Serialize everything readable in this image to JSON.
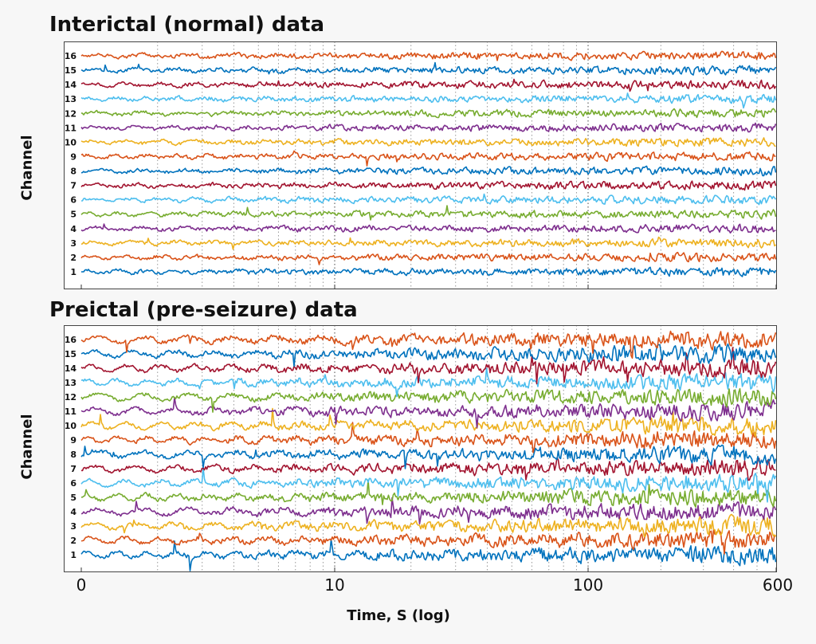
{
  "chart_data": [
    {
      "type": "line",
      "title": "Interictal (normal) data",
      "ylabel": "Channel",
      "xlabel": "",
      "x_scale": "log",
      "xlim": [
        0,
        600
      ],
      "x_ticks": [
        "0",
        "10",
        "100",
        "600"
      ],
      "channels": [
        "1",
        "2",
        "3",
        "4",
        "5",
        "6",
        "7",
        "8",
        "9",
        "10",
        "11",
        "12",
        "13",
        "14",
        "15",
        "16"
      ],
      "grid": "vertical dotted",
      "series_colors": [
        "#0072bd",
        "#d95319",
        "#edb120",
        "#7e2f8e",
        "#77ac30",
        "#4dbeee",
        "#a2142f",
        "#0072bd",
        "#d95319",
        "#edb120",
        "#7e2f8e",
        "#77ac30",
        "#4dbeee",
        "#a2142f",
        "#0072bd",
        "#d95319"
      ],
      "amplitude_profile": "low, roughly constant across time"
    },
    {
      "type": "line",
      "title": "Preictal (pre-seizure) data",
      "ylabel": "Channel",
      "xlabel": "Time, S (log)",
      "x_scale": "log",
      "xlim": [
        0,
        600
      ],
      "x_ticks": [
        "0",
        "10",
        "100",
        "600"
      ],
      "channels": [
        "1",
        "2",
        "3",
        "4",
        "5",
        "6",
        "7",
        "8",
        "9",
        "10",
        "11",
        "12",
        "13",
        "14",
        "15",
        "16"
      ],
      "grid": "vertical dotted",
      "series_colors": [
        "#0072bd",
        "#d95319",
        "#edb120",
        "#7e2f8e",
        "#77ac30",
        "#4dbeee",
        "#a2142f",
        "#0072bd",
        "#d95319",
        "#edb120",
        "#7e2f8e",
        "#77ac30",
        "#4dbeee",
        "#a2142f",
        "#0072bd",
        "#d95319"
      ],
      "amplitude_profile": "increasing strongly toward later time"
    }
  ]
}
